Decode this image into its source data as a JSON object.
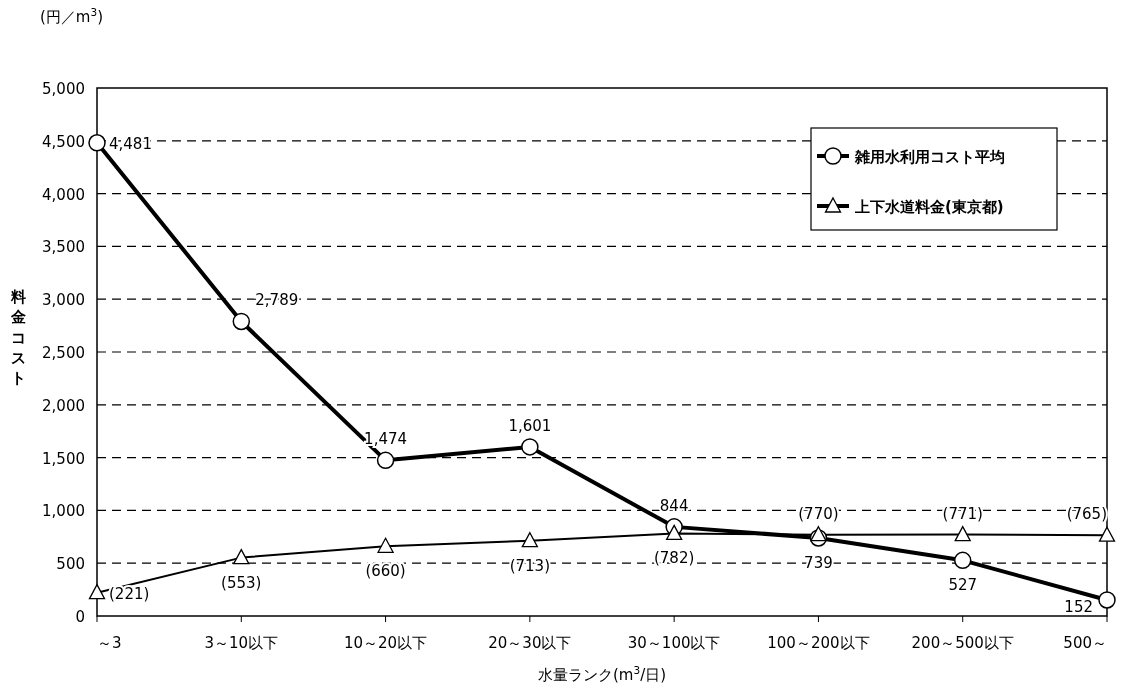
{
  "chart_data": {
    "type": "line",
    "xlabel": "水量ランク(m$^{3}$/日)",
    "ylabel": "料金コスト",
    "annotations": [
      "(円／m$^{3}$)"
    ],
    "categories": [
      "～3",
      "3～10以下",
      "10～20以下",
      "20～30以下",
      "30～100以下",
      "100～200以下",
      "200～500以下",
      "500～"
    ],
    "series": [
      {
        "name": "雑用水利用コスト平均",
        "color": "#000000",
        "marker": "circle",
        "values": [
          4481,
          2789,
          1474,
          1601,
          844,
          739,
          527,
          152
        ],
        "value_labels": [
          "4,481",
          "2,789",
          "1,474",
          "1,601",
          "844",
          "739",
          "527",
          "152"
        ]
      },
      {
        "name": "上下水道料金(東京都)",
        "color": "#000000",
        "marker": "triangle",
        "values": [
          221,
          553,
          660,
          713,
          782,
          770,
          771,
          765
        ],
        "value_labels": [
          "(221)",
          "(553)",
          "(660)",
          "(713)",
          "(782)",
          "(770)",
          "(771)",
          "(765)"
        ]
      }
    ],
    "ylim": [
      0,
      5000
    ],
    "yticks": [
      {
        "value": 0,
        "label": "0"
      },
      {
        "value": 500,
        "label": "500"
      },
      {
        "value": 1000,
        "label": "1,000"
      },
      {
        "value": 1500,
        "label": "1,500"
      },
      {
        "value": 2000,
        "label": "2,000"
      },
      {
        "value": 2500,
        "label": "2,500"
      },
      {
        "value": 3000,
        "label": "3,000"
      },
      {
        "value": 3500,
        "label": "3,500"
      },
      {
        "value": 4000,
        "label": "4,000"
      },
      {
        "value": 4500,
        "label": "4,500"
      },
      {
        "value": 5000,
        "label": "5,000"
      }
    ],
    "grid": "y",
    "legend": "top right",
    "line_style": "solid"
  }
}
